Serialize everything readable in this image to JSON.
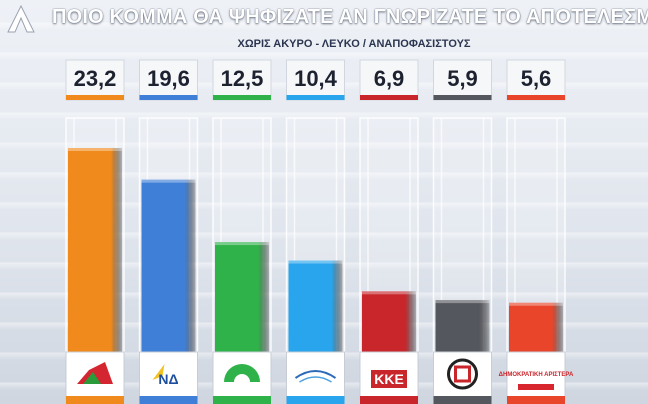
{
  "header": {
    "title": "ΠΟΙΟ ΚΟΜΜΑ ΘΑ ΨΗΦΙΖΑΤΕ ΑΝ ΓΝΩΡΙΖΑΤΕ ΤΟ ΑΠΟΤΕΛΕΣΜΑ;",
    "subtitle": "ΧΩΡΙΣ ΑΚΥΡΟ - ΛΕΥΚΟ / ΑΝΑΠΟΦΑΣΙΣΤΟΥΣ"
  },
  "colors": {
    "bars": [
      "#f08a1c",
      "#3f7fd8",
      "#2fb24a",
      "#28a5ec",
      "#c9262c",
      "#55575e",
      "#e8452a"
    ],
    "label_box": "#f6f7f9",
    "label_text": "#1d2230"
  },
  "chart_data": {
    "type": "bar",
    "title": "ΠΟΙΟ ΚΟΜΜΑ ΘΑ ΨΗΦΙΖΑΤΕ ΑΝ ΓΝΩΡΙΖΑΤΕ ΤΟ ΑΠΟΤΕΛΕΣΜΑ;",
    "subtitle": "ΧΩΡΙΣ ΑΚΥΡΟ - ΛΕΥΚΟ / ΑΝΑΠΟΦΑΣΙΣΤΟΥΣ",
    "categories": [
      "ΣΥΡΙΖΑ",
      "ΝΔ",
      "ΠΑΣΟΚ",
      "ΑΝΕΞΑΡΤΗΤΟΙ ΕΛΛΗΝΕΣ",
      "ΚΚΕ",
      "ΧΡΥΣΗ ΑΥΓΗ",
      "ΔΗΜΟΚΡΑΤΙΚΗ ΑΡΙΣΤΕΡΑ"
    ],
    "values": [
      23.2,
      19.6,
      12.5,
      10.4,
      6.9,
      5.9,
      5.6
    ],
    "value_labels": [
      "23,2",
      "19,6",
      "12,5",
      "10,4",
      "6,9",
      "5,9",
      "5,6"
    ],
    "logo_text": [
      "",
      "ΝΔ",
      "",
      "",
      "ΚΚΕ",
      "",
      "ΔΗΜΟΚΡΑΤΙΚΗ ΑΡΙΣΤΕΡΑ"
    ],
    "ylim": [
      0,
      23.2
    ],
    "grid": false,
    "legend": "none"
  }
}
